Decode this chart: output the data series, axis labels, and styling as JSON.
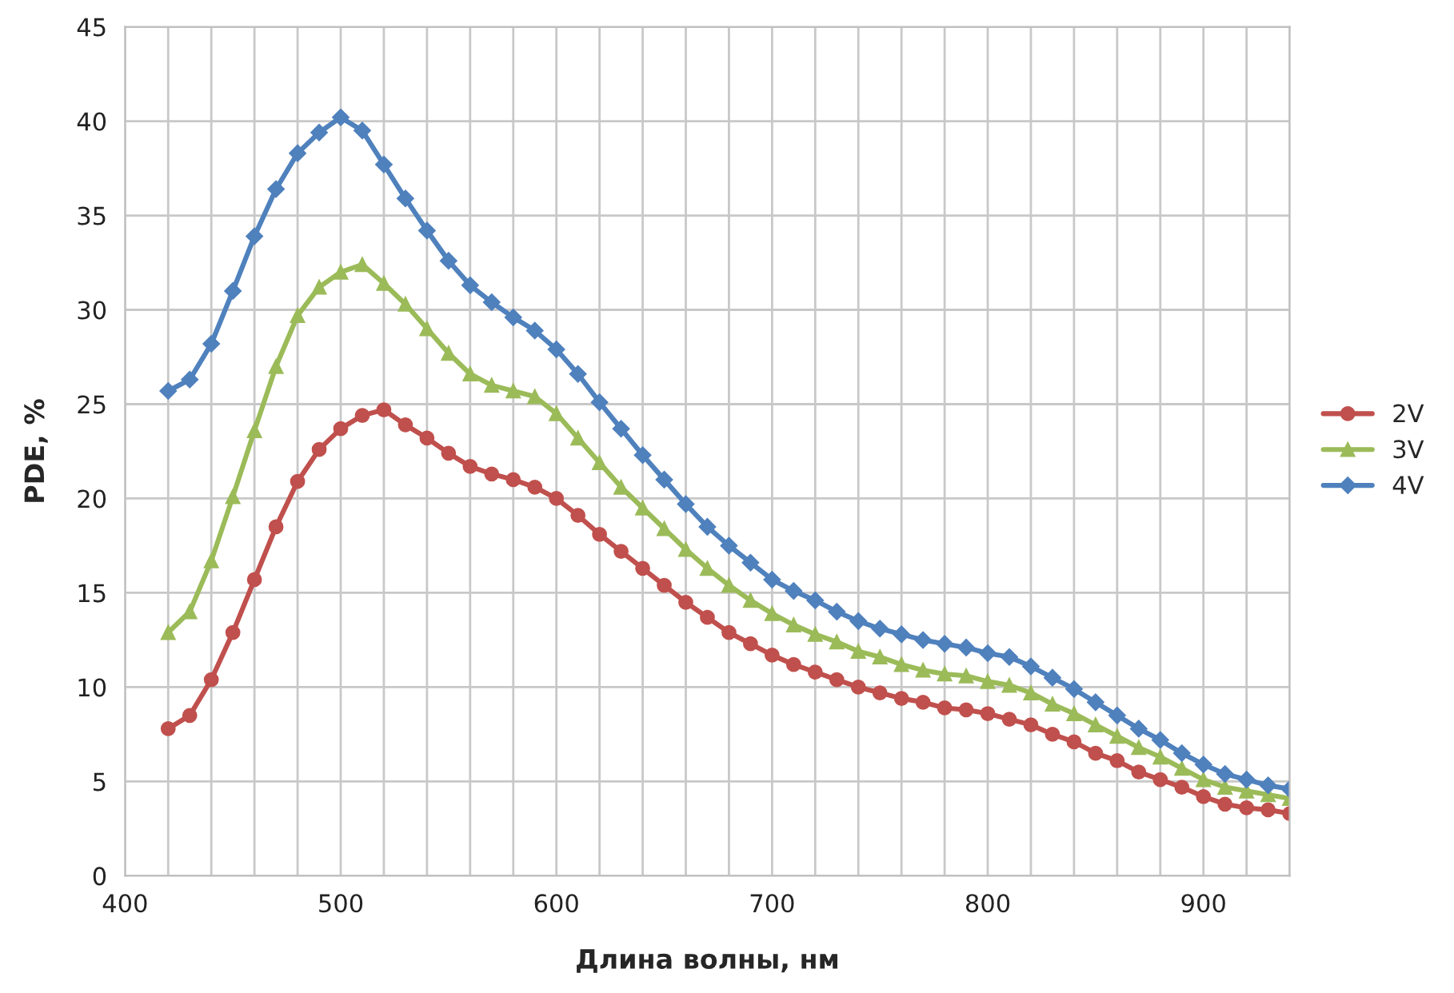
{
  "chart_data": {
    "type": "line",
    "xlabel": "Длина волны, нм",
    "ylabel": "PDE, %",
    "x": [
      420,
      430,
      440,
      450,
      460,
      470,
      480,
      490,
      500,
      510,
      520,
      530,
      540,
      550,
      560,
      570,
      580,
      590,
      600,
      610,
      620,
      630,
      640,
      650,
      660,
      670,
      680,
      690,
      700,
      710,
      720,
      730,
      740,
      750,
      760,
      770,
      780,
      790,
      800,
      810,
      820,
      830,
      840,
      850,
      860,
      870,
      880,
      890,
      900,
      910,
      920,
      930,
      940
    ],
    "series": [
      {
        "name": "2V",
        "color": "#c0504d",
        "marker": "circle",
        "values": [
          7.8,
          8.5,
          10.4,
          12.9,
          15.7,
          18.5,
          20.9,
          22.6,
          23.7,
          24.4,
          24.7,
          23.9,
          23.2,
          22.4,
          21.7,
          21.3,
          21.0,
          20.6,
          20.0,
          19.1,
          18.1,
          17.2,
          16.3,
          15.4,
          14.5,
          13.7,
          12.9,
          12.3,
          11.7,
          11.2,
          10.8,
          10.4,
          10.0,
          9.7,
          9.4,
          9.2,
          8.9,
          8.8,
          8.6,
          8.3,
          8.0,
          7.5,
          7.1,
          6.5,
          6.1,
          5.5,
          5.1,
          4.7,
          4.2,
          3.8,
          3.6,
          3.5,
          3.3
        ]
      },
      {
        "name": "3V",
        "color": "#9bbb59",
        "marker": "triangle",
        "values": [
          12.9,
          14.0,
          16.7,
          20.1,
          23.6,
          27.0,
          29.7,
          31.2,
          32.0,
          32.4,
          31.4,
          30.3,
          29.0,
          27.7,
          26.6,
          26.0,
          25.7,
          25.4,
          24.5,
          23.2,
          21.9,
          20.6,
          19.5,
          18.4,
          17.3,
          16.3,
          15.4,
          14.6,
          13.9,
          13.3,
          12.8,
          12.4,
          11.9,
          11.6,
          11.2,
          10.9,
          10.7,
          10.6,
          10.3,
          10.1,
          9.7,
          9.1,
          8.6,
          8.0,
          7.4,
          6.8,
          6.3,
          5.7,
          5.1,
          4.7,
          4.5,
          4.3,
          4.1
        ]
      },
      {
        "name": "4V",
        "color": "#4f81bd",
        "marker": "diamond",
        "values": [
          25.7,
          26.3,
          28.2,
          31.0,
          33.9,
          36.4,
          38.3,
          39.4,
          40.2,
          39.5,
          37.7,
          35.9,
          34.2,
          32.6,
          31.3,
          30.4,
          29.6,
          28.9,
          27.9,
          26.6,
          25.1,
          23.7,
          22.3,
          21.0,
          19.7,
          18.5,
          17.5,
          16.6,
          15.7,
          15.1,
          14.6,
          14.0,
          13.5,
          13.1,
          12.8,
          12.5,
          12.3,
          12.1,
          11.8,
          11.6,
          11.1,
          10.5,
          9.9,
          9.2,
          8.5,
          7.8,
          7.2,
          6.5,
          5.9,
          5.4,
          5.1,
          4.8,
          4.6
        ]
      }
    ],
    "xlim": [
      400,
      940
    ],
    "xticks": [
      400,
      {
        "value": 420,
        "label": null
      },
      {
        "value": 440,
        "label": null
      },
      {
        "value": 460,
        "label": null
      },
      {
        "value": 480,
        "label": null
      },
      500,
      {
        "value": 520,
        "label": null
      },
      {
        "value": 540,
        "label": null
      },
      {
        "value": 560,
        "label": null
      },
      {
        "value": 580,
        "label": null
      },
      600,
      {
        "value": 620,
        "label": null
      },
      {
        "value": 640,
        "label": null
      },
      {
        "value": 660,
        "label": null
      },
      {
        "value": 680,
        "label": null
      },
      700,
      {
        "value": 720,
        "label": null
      },
      {
        "value": 740,
        "label": null
      },
      {
        "value": 760,
        "label": null
      },
      {
        "value": 780,
        "label": null
      },
      800,
      {
        "value": 820,
        "label": null
      },
      {
        "value": 840,
        "label": null
      },
      {
        "value": 860,
        "label": null
      },
      {
        "value": 880,
        "label": null
      },
      900,
      {
        "value": 920,
        "label": null
      },
      {
        "value": 940,
        "label": null
      }
    ],
    "ylim": [
      0,
      45
    ],
    "yticks": [
      0,
      5,
      10,
      15,
      20,
      25,
      30,
      35,
      40,
      45
    ],
    "grid": true,
    "legend": "right",
    "line_style": "solid"
  }
}
